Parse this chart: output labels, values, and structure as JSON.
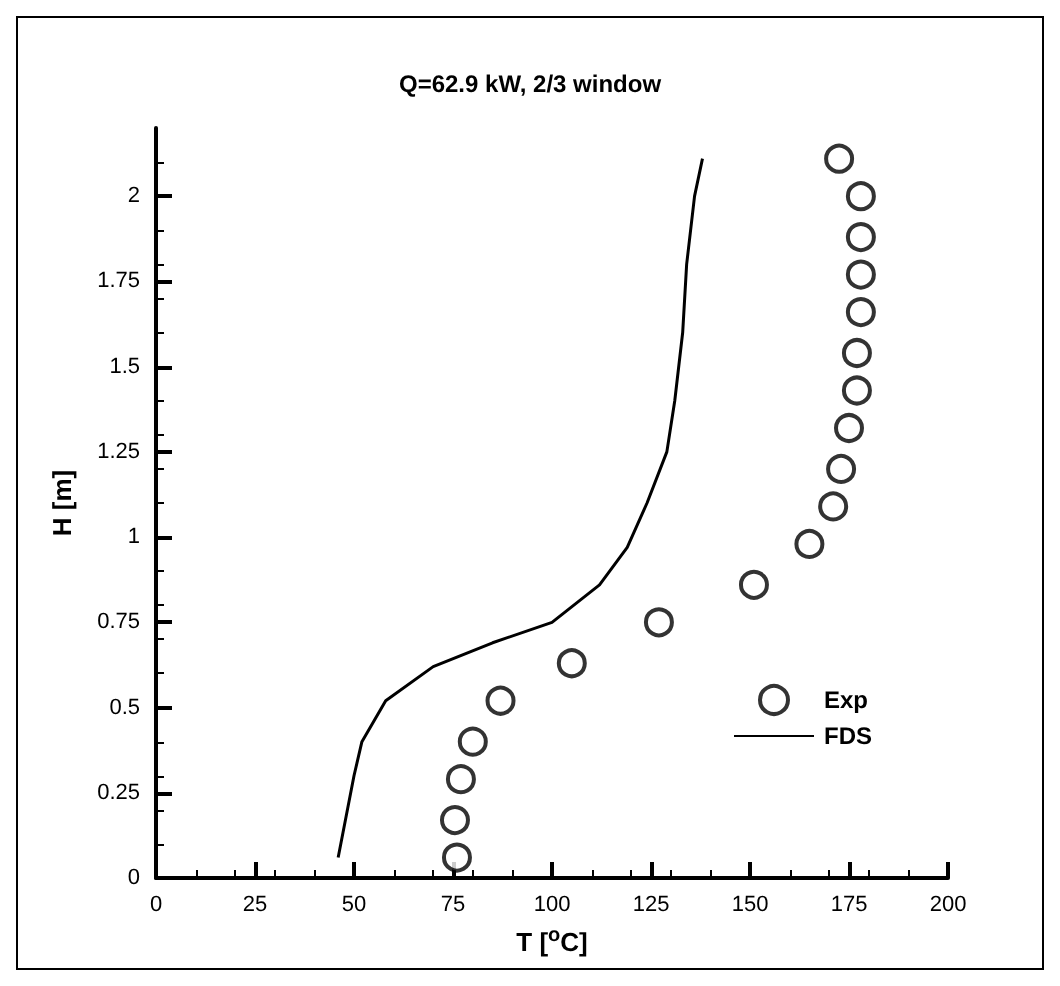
{
  "chart_data": {
    "type": "line",
    "title": "Q=62.9 kW, 2/3 window",
    "xlabel": "T [$^{o}$C]",
    "ylabel": "H [m]",
    "xlim": [
      0,
      200
    ],
    "xticks": [
      0,
      25,
      50,
      75,
      100,
      125,
      150,
      175,
      200
    ],
    "ylim": [
      0,
      2.2
    ],
    "yticks": [
      0,
      0.25,
      0.5,
      0.75,
      1,
      1.25,
      1.5,
      1.75,
      2
    ],
    "grid": false,
    "legend": "bottom right",
    "series": [
      {
        "name": "Exp",
        "type": "scatter",
        "marker": "circle",
        "color": "#000000",
        "x": [
          76,
          75.5,
          77,
          80,
          87,
          105,
          127,
          151,
          165,
          171,
          173,
          175,
          177,
          177,
          178,
          178,
          178,
          178,
          172.5
        ],
        "values": [
          0.06,
          0.17,
          0.29,
          0.4,
          0.52,
          0.63,
          0.75,
          0.86,
          0.98,
          1.09,
          1.2,
          1.32,
          1.43,
          1.54,
          1.66,
          1.77,
          1.88,
          2,
          2.11
        ]
      },
      {
        "name": "FDS",
        "marker": "none",
        "line_style": "solid",
        "color": "#000000",
        "x": [
          46,
          50,
          52,
          58,
          70,
          85,
          100,
          112,
          119,
          124,
          129,
          131,
          133,
          134,
          136,
          138
        ],
        "values": [
          0.06,
          0.3,
          0.4,
          0.52,
          0.62,
          0.69,
          0.75,
          0.86,
          0.97,
          1.1,
          1.25,
          1.4,
          1.6,
          1.8,
          2,
          2.11
        ]
      }
    ]
  }
}
